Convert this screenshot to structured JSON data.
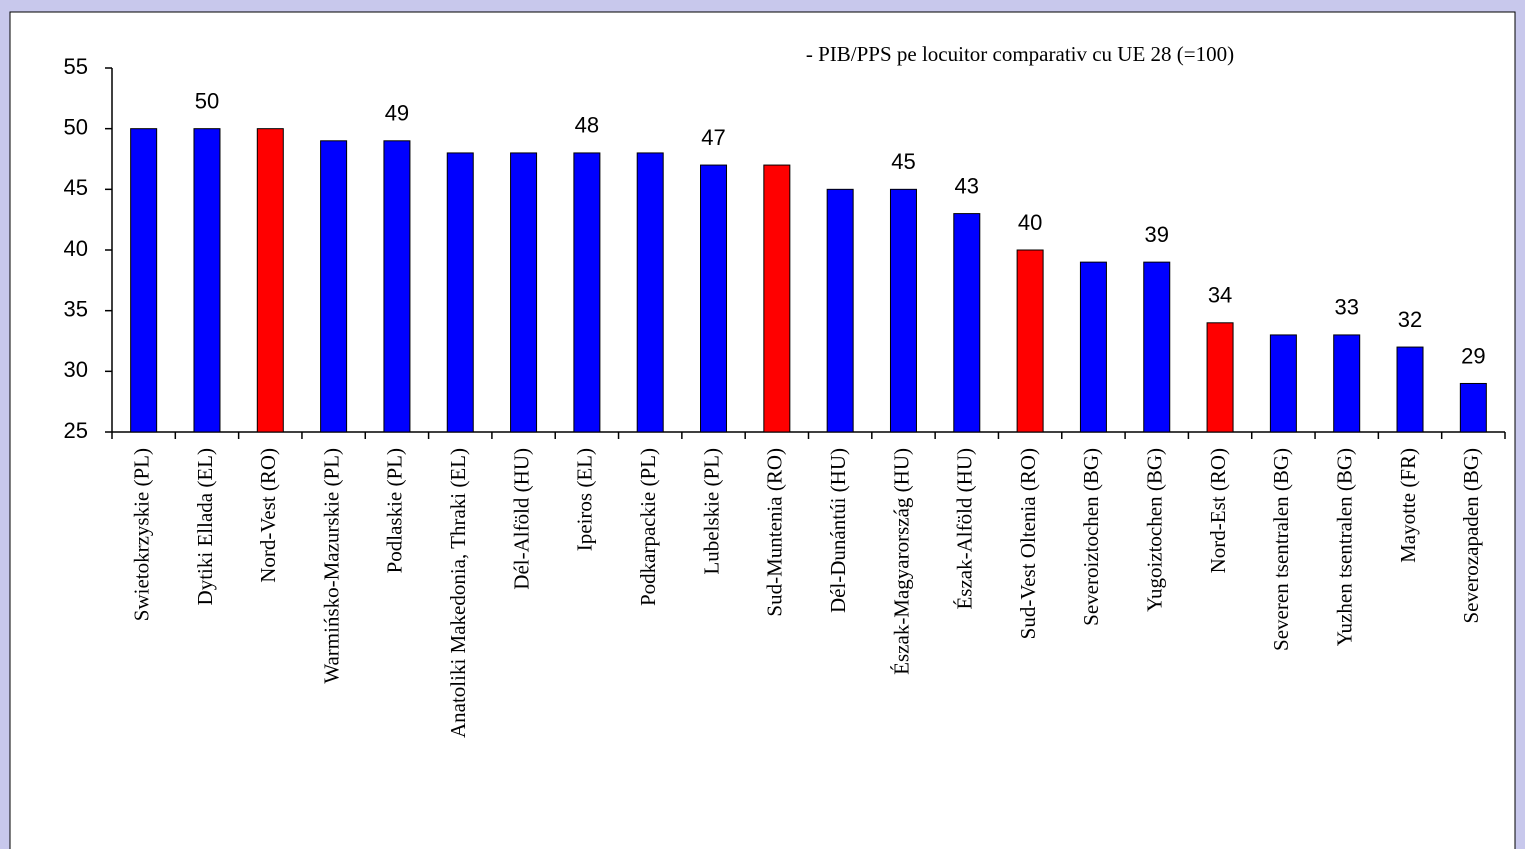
{
  "chart_data": {
    "type": "bar",
    "title": "- PIB/PPS pe locuitor comparativ cu UE 28 (=100)",
    "categories": [
      "Swietokrzyskie (PL)",
      "Dytiki Ellada (EL)",
      "Nord-Vest (RO)",
      "Warmińsko-Mazurskie (PL)",
      "Podlaskie (PL)",
      "Anatoliki Makedonia,  Thraki (EL)",
      "Dél-Alföld (HU)",
      "Ipeiros (EL)",
      "Podkarpackie (PL)",
      "Lubelskie (PL)",
      "Sud-Muntenia (RO)",
      "Dél-Dunántúi (HU)",
      "Észak-Magyarország (HU)",
      "Észak-Alföld (HU)",
      "Sud-Vest Oltenia (RO)",
      "Severoiztochen (BG)",
      "Yugoiztochen (BG)",
      "Nord-Est (RO)",
      "Severen tsentralen (BG)",
      "Yuzhen tsentralen (BG)",
      "Mayotte (FR)",
      "Severozapaden (BG)"
    ],
    "values": [
      50,
      50,
      50,
      49,
      49,
      48,
      48,
      48,
      48,
      47,
      47,
      45,
      45,
      43,
      40,
      39,
      39,
      34,
      33,
      33,
      32,
      29
    ],
    "value_labels": [
      null,
      "50",
      null,
      null,
      "49",
      null,
      null,
      "48",
      null,
      "47",
      null,
      null,
      "45",
      "43",
      "40",
      null,
      "39",
      "34",
      null,
      "33",
      "32",
      "29"
    ],
    "colors": [
      "#0000ff",
      "#0000ff",
      "#ff0000",
      "#0000ff",
      "#0000ff",
      "#0000ff",
      "#0000ff",
      "#0000ff",
      "#0000ff",
      "#0000ff",
      "#ff0000",
      "#0000ff",
      "#0000ff",
      "#0000ff",
      "#ff0000",
      "#0000ff",
      "#0000ff",
      "#ff0000",
      "#0000ff",
      "#0000ff",
      "#0000ff",
      "#0000ff"
    ],
    "ylim": [
      25,
      55
    ],
    "yticks": [
      25,
      30,
      35,
      40,
      45,
      50,
      55
    ],
    "grid": false
  }
}
